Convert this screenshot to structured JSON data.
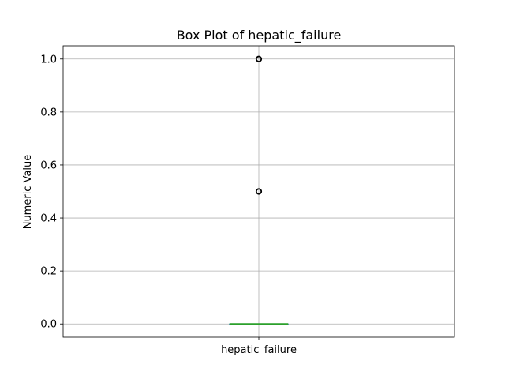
{
  "chart_data": {
    "type": "box",
    "title": "Box Plot of hepatic_failure",
    "xlabel": "",
    "ylabel": "Numeric Value",
    "categories": [
      "hepatic_failure"
    ],
    "ylim": [
      -0.05,
      1.05
    ],
    "yticks": [
      0.0,
      0.2,
      0.4,
      0.6,
      0.8,
      1.0
    ],
    "ytick_labels": [
      "0.0",
      "0.2",
      "0.4",
      "0.6",
      "0.8",
      "1.0"
    ],
    "grid": true,
    "boxes": [
      {
        "name": "hepatic_failure",
        "min": 0.0,
        "q1": 0.0,
        "median": 0.0,
        "q3": 0.0,
        "max": 0.0,
        "outliers": [
          0.5,
          1.0
        ]
      }
    ],
    "colors": {
      "median": "#2ca02c",
      "box": "#1f77b4",
      "grid": "#b0b0b0"
    }
  }
}
